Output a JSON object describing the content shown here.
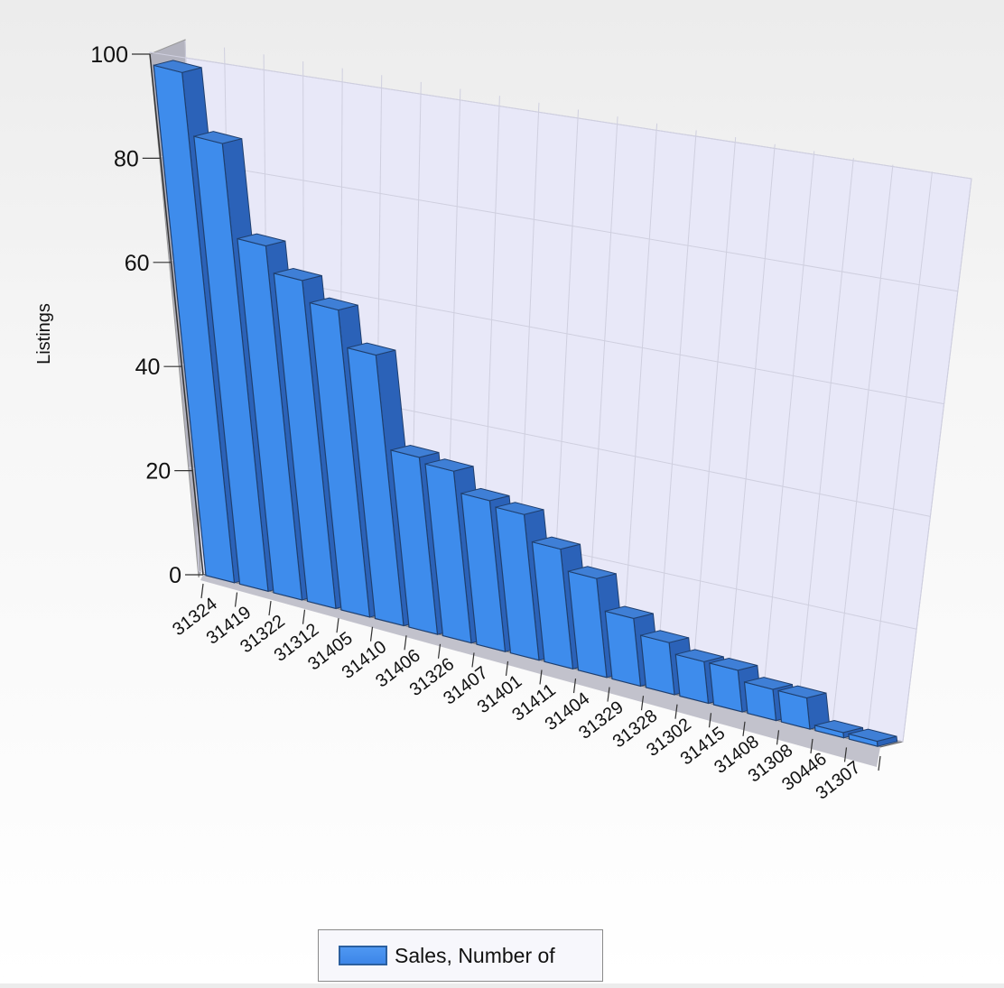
{
  "chart_data": {
    "type": "bar",
    "categories": [
      "31324",
      "31419",
      "31322",
      "31312",
      "31405",
      "31410",
      "31406",
      "31326",
      "31407",
      "31401",
      "31411",
      "31404",
      "31329",
      "31328",
      "31302",
      "31415",
      "31408",
      "31308",
      "30446",
      "31307"
    ],
    "series": [
      {
        "name": "Sales, Number of",
        "values": [
          98,
          86,
          68,
          63,
          59,
          52,
          34,
          33,
          29,
          28,
          23,
          19,
          13,
          10,
          8,
          8,
          6,
          6,
          1,
          1
        ]
      }
    ],
    "ylabel": "Listings",
    "yticks": [
      0,
      20,
      40,
      60,
      80,
      100
    ],
    "ylim": [
      0,
      100
    ],
    "grid": true,
    "legend_position": "bottom",
    "style": "3d",
    "colors": {
      "bar": "#3e8cec",
      "bar_side": "#2b62b8",
      "bar_top": "#3f7fd6",
      "wall": "#e8e8f8",
      "grid": "#cfcfdf"
    }
  }
}
